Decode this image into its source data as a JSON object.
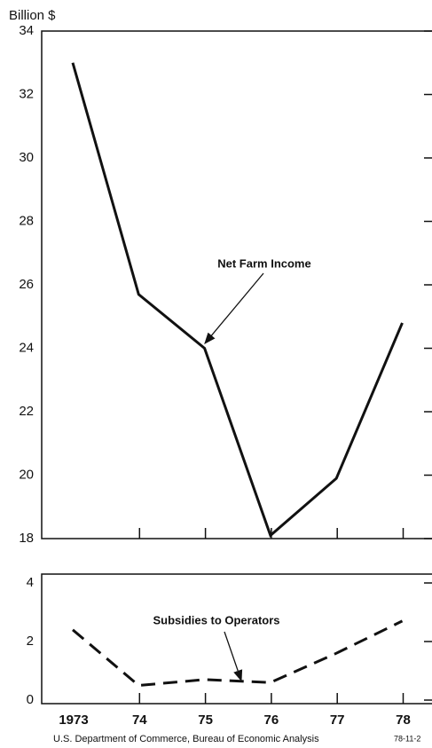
{
  "chart_data": [
    {
      "type": "line",
      "ylabel": "Billion $",
      "series": [
        {
          "name": "Net Farm Income",
          "color": "#111111",
          "dash": false,
          "values": [
            33,
            25.7,
            24.0,
            18.1,
            19.9,
            24.8
          ]
        }
      ],
      "ylim": [
        18,
        34
      ],
      "yticks": [
        18,
        20,
        22,
        24,
        26,
        28,
        30,
        32,
        34
      ]
    },
    {
      "type": "line",
      "categories": [
        "1973",
        "74",
        "75",
        "76",
        "77",
        "78"
      ],
      "series": [
        {
          "name": "Subsidies to Operators",
          "color": "#111111",
          "dash": true,
          "values": [
            2.4,
            0.5,
            0.7,
            0.6,
            1.6,
            2.7
          ]
        }
      ],
      "ylim": [
        0,
        4
      ],
      "yticks": [
        0,
        2,
        4
      ]
    }
  ],
  "footer": {
    "source": "U.S. Department of Commerce, Bureau of Economic Analysis",
    "code": "78-11-2"
  }
}
